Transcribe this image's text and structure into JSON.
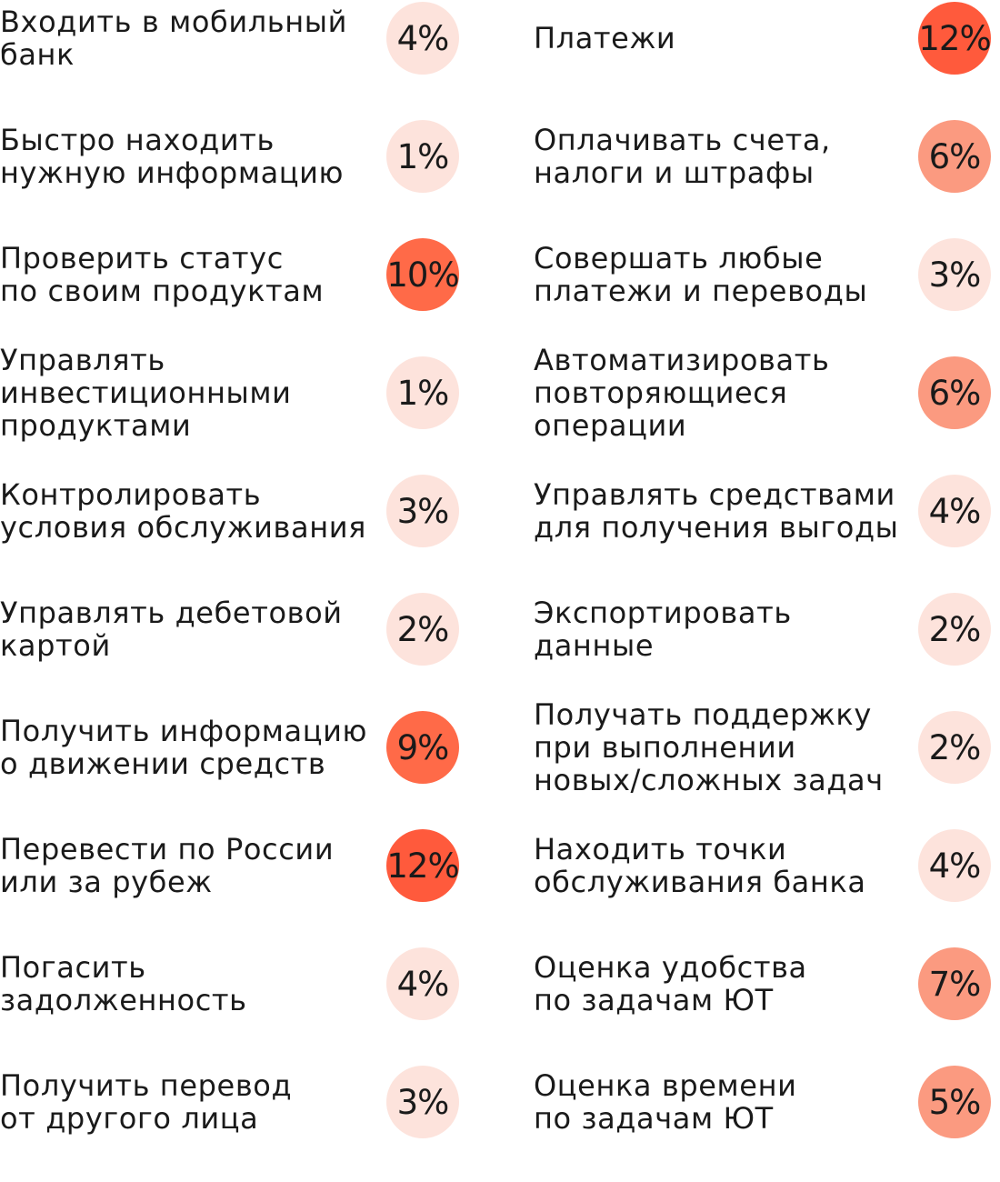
{
  "chart_data": {
    "type": "table",
    "value_unit": "%",
    "color_scale": [
      "#fde3dc",
      "#fb9a80",
      "#ff6a48",
      "#ff5a3c"
    ],
    "columns": [
      {
        "rows": [
          {
            "label": "Входить в мобильный\nбанк",
            "value": 4
          },
          {
            "label": "Быстро находить\nнужную информацию",
            "value": 1
          },
          {
            "label": "Проверить статус\nпо своим продуктам",
            "value": 10
          },
          {
            "label": "Управлять\nинвестиционными\nпродуктами",
            "value": 1
          },
          {
            "label": "Контролировать\nусловия обслуживания",
            "value": 3
          },
          {
            "label": "Управлять дебетовой\nкартой",
            "value": 2
          },
          {
            "label": "Получить информацию\nо движении средств",
            "value": 9
          },
          {
            "label": "Перевести по России\nили за рубеж",
            "value": 12
          },
          {
            "label": "Погасить\nзадолженность",
            "value": 4
          },
          {
            "label": "Получить перевод\nот другого лица",
            "value": 3
          }
        ]
      },
      {
        "rows": [
          {
            "label": "Платежи",
            "value": 12
          },
          {
            "label": "Оплачивать счета,\nналоги и штрафы",
            "value": 6
          },
          {
            "label": "Совершать любые\nплатежи и переводы",
            "value": 3
          },
          {
            "label": "Автоматизировать\nповторяющиеся\nоперации",
            "value": 6
          },
          {
            "label": "Управлять средствами\nдля получения выгоды",
            "value": 4
          },
          {
            "label": "Экспортировать\nданные",
            "value": 2
          },
          {
            "label": "Получать поддержку\nпри выполнении\nновых/сложных задач",
            "value": 2
          },
          {
            "label": "Находить точки\nобслуживания банка",
            "value": 4
          },
          {
            "label": "Оценка удобства\nпо задачам ЮТ",
            "value": 7
          },
          {
            "label": "Оценка времени\nпо задачам ЮТ",
            "value": 5
          }
        ]
      }
    ]
  }
}
